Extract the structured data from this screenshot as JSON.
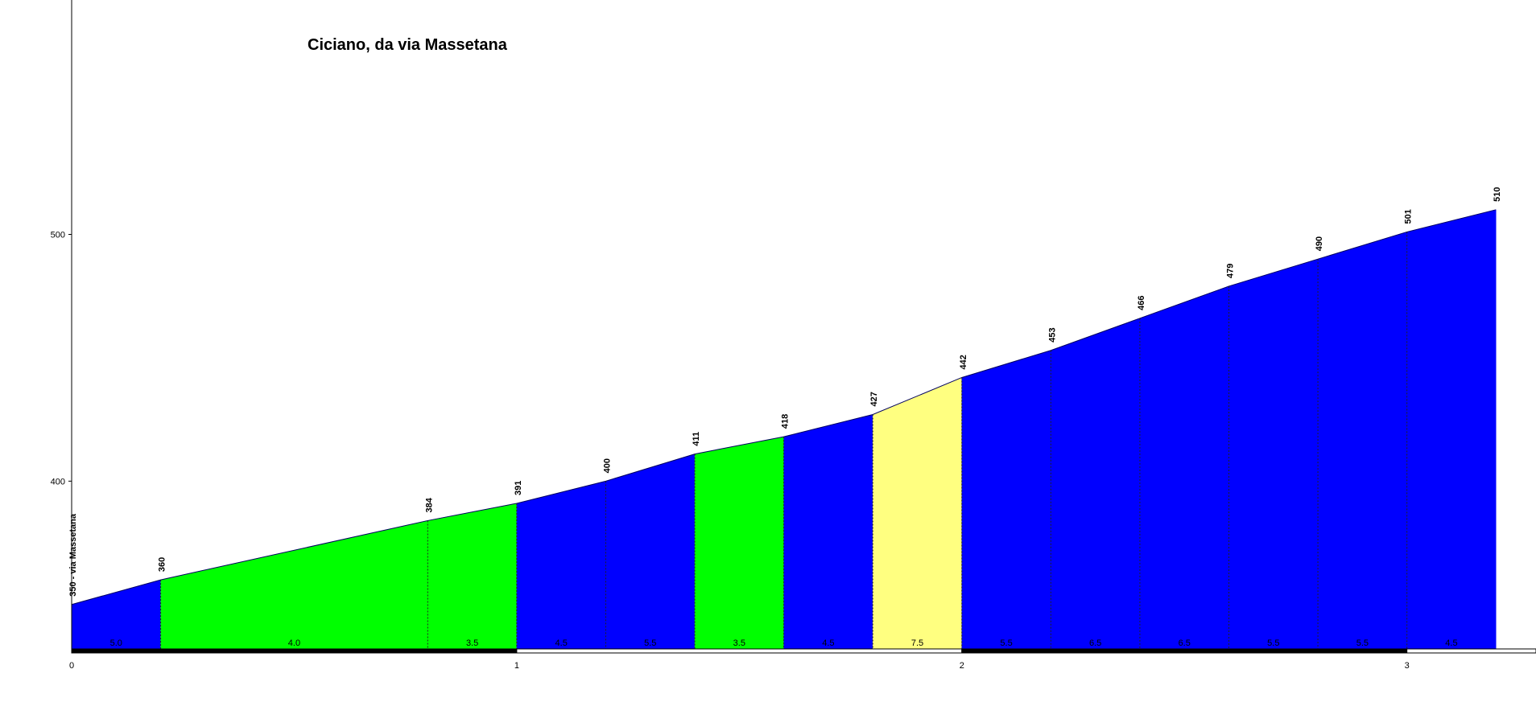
{
  "chart_data": {
    "type": "profile",
    "title": "Ciciano, da via Massetana",
    "x": [
      0,
      0.2,
      0.8,
      1.0,
      1.2,
      1.4,
      1.6,
      1.8,
      2.0,
      2.2,
      2.4,
      2.6,
      2.8,
      3.0,
      3.2
    ],
    "values": [
      350,
      360,
      384,
      391,
      400,
      411,
      418,
      427,
      442,
      453,
      466,
      479,
      490,
      501,
      510
    ],
    "value_labels": [
      "350 - via Massetana",
      "360",
      "384",
      "391",
      "400",
      "411",
      "418",
      "427",
      "442",
      "453",
      "466",
      "479",
      "490",
      "501",
      "510"
    ],
    "segments": {
      "values": [
        5,
        4,
        3.5,
        4.5,
        5.5,
        3.5,
        4.5,
        7.5,
        5.5,
        6.5,
        6.5,
        5.5,
        5.5,
        4.5
      ],
      "value_labels": [
        "5.0",
        "4.0",
        "3.5",
        "4.5",
        "5.5",
        "3.5",
        "4.5",
        "7.5",
        "5.5",
        "6.5",
        "6.5",
        "5.5",
        "5.5",
        "4.5"
      ],
      "colors": [
        "#0000ff",
        "#00ff00",
        "#00ff00",
        "#0000ff",
        "#0000ff",
        "#00ff00",
        "#0000ff",
        "#ffff80",
        "#0000ff",
        "#0000ff",
        "#0000ff",
        "#0000ff",
        "#0000ff",
        "#0000ff"
      ]
    },
    "xlim": [
      0,
      3.29
    ],
    "ylim": [
      332,
      595
    ],
    "xticks": [
      0,
      1,
      2,
      3
    ],
    "yticks": [
      400,
      500
    ]
  }
}
